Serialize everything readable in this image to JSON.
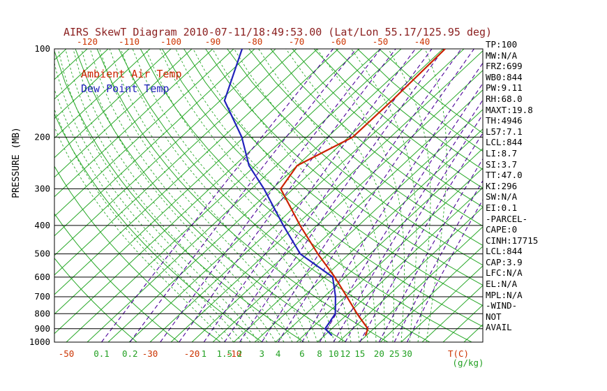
{
  "title": "AIRS SkewT Diagram 2010-07-11/18:49:53.00 (Lat/Lon 55.17/125.95 deg)",
  "legend": {
    "ambient": "Ambient Air Temp",
    "dewpoint": "Dew Point Temp"
  },
  "colors": {
    "title": "#8b2020",
    "ambient_trace": "#cc2200",
    "dewpoint_trace": "#2222bb",
    "isotherm": "#28a828",
    "dry_adiabat": "#28a828",
    "moist_adiabat": "#28a828",
    "mixing_ratio": "#4b0099",
    "pressure_line": "#000000",
    "axis_text_temp": "#cc3300",
    "axis_text_ratio": "#22a022",
    "axis_text_pressure": "#000000",
    "stats_text": "#000000"
  },
  "axes": {
    "pressure_label": "PRESSURE (MB)",
    "pressure_ticks": [
      100,
      200,
      300,
      400,
      500,
      600,
      700,
      800,
      900,
      1000
    ],
    "top_temp_ticks": [
      -120,
      -110,
      -100,
      -90,
      -80,
      -70,
      -60,
      -50,
      -40
    ],
    "bottom_temp_ticks": [
      -50,
      -30,
      -20,
      -10
    ],
    "temp_unit_label": "T(C)",
    "ratio_unit_label": "(g/kg)",
    "mixing_ratio_labels": [
      0.1,
      0.2,
      1,
      1.5,
      2,
      3,
      4,
      6,
      8,
      10,
      12,
      15,
      20,
      25,
      30
    ]
  },
  "stats": [
    "TP:100",
    "MW:N/A",
    "FRZ:699",
    "WB0:844",
    "PW:9.11",
    "RH:68.0",
    "MAXT:19.8",
    "TH:4946",
    "L57:7.1",
    "LCL:844",
    "LI:8.7",
    "SI:3.7",
    "TT:47.0",
    "KI:296",
    "SW:N/A",
    "EI:0.1",
    "-PARCEL-",
    "CAPE:0",
    "CINH:17715",
    "LCL:844",
    "CAP:3.9",
    "LFC:N/A",
    "EL:N/A",
    "MPL:N/A",
    "-WIND-",
    "NOT",
    "AVAIL"
  ],
  "chart_data": {
    "type": "line",
    "variant": "skew-t-log-p",
    "title": "AIRS SkewT Diagram 2010-07-11/18:49:53.00 (Lat/Lon 55.17/125.95 deg)",
    "xlabel": "T(C)",
    "ylabel": "PRESSURE (MB)",
    "pressure_range_mb": [
      100,
      1000
    ],
    "top_axis_temp_range_c": [
      -120,
      -40
    ],
    "grid": "skew-t background (isotherms, adiabats, mixing-ratio lines)",
    "legend_position": "top-left inside plot",
    "series": [
      {
        "name": "Ambient Air Temp",
        "color": "#cc2200",
        "points": [
          {
            "p": 100,
            "t": -34.5
          },
          {
            "p": 150,
            "t": -34.0
          },
          {
            "p": 200,
            "t": -34.0
          },
          {
            "p": 250,
            "t": -40.0
          },
          {
            "p": 300,
            "t": -38.0
          },
          {
            "p": 400,
            "t": -24.0
          },
          {
            "p": 500,
            "t": -12.5
          },
          {
            "p": 600,
            "t": -2.5
          },
          {
            "p": 700,
            "t": 5.4
          },
          {
            "p": 800,
            "t": 12.2
          },
          {
            "p": 900,
            "t": 18.6
          },
          {
            "p": 950,
            "t": 19.8
          }
        ]
      },
      {
        "name": "Dew Point Temp",
        "color": "#2222bb",
        "points": [
          {
            "p": 100,
            "t": -83.0
          },
          {
            "p": 150,
            "t": -74.0
          },
          {
            "p": 200,
            "t": -60.5
          },
          {
            "p": 250,
            "t": -51.5
          },
          {
            "p": 300,
            "t": -42.0
          },
          {
            "p": 400,
            "t": -28.0
          },
          {
            "p": 500,
            "t": -16.7
          },
          {
            "p": 600,
            "t": -3.0
          },
          {
            "p": 700,
            "t": 2.7
          },
          {
            "p": 800,
            "t": 7.0
          },
          {
            "p": 900,
            "t": 8.4
          },
          {
            "p": 950,
            "t": 11.8
          }
        ]
      }
    ],
    "background_lines": {
      "isotherm_range_c": [
        -145,
        45
      ],
      "isotherm_step_c": 5,
      "dry_adiabat_theta_k_range": [
        240,
        430
      ],
      "dry_adiabat_step_k": 10,
      "moist_adiabat_thetaw_c_range": [
        -12,
        36
      ],
      "moist_adiabat_step_c": 2,
      "mixing_ratio_lines_g_kg": [
        0.1,
        0.2,
        0.4,
        0.6,
        1,
        1.5,
        2,
        3,
        4,
        6,
        8,
        10,
        12,
        15,
        20,
        25,
        30
      ]
    }
  }
}
